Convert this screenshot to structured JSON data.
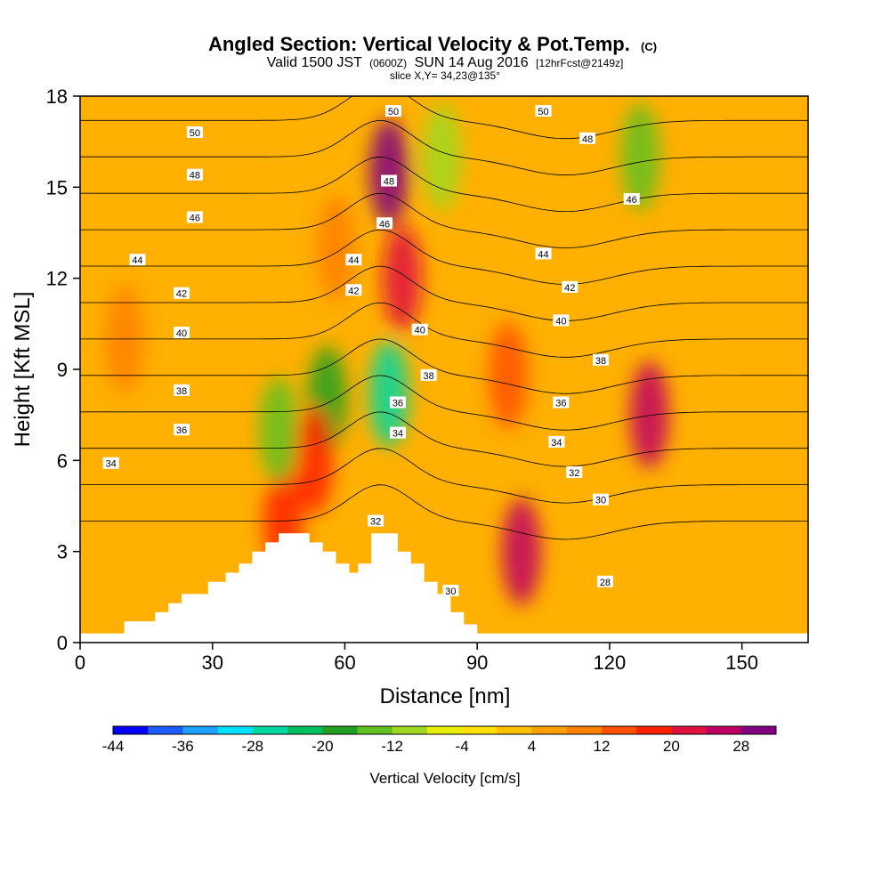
{
  "title": {
    "line1": "Angled Section: Vertical Velocity & Pot.Temp.",
    "line1_suffix": "(C)",
    "line2_a": "Valid 1500 JST",
    "line2_b": "(0600Z)",
    "line2_c": "SUN 14 Aug 2016",
    "line2_d": "[12hrFcst@2149z]",
    "line3": "slice X,Y= 34,23@135°"
  },
  "chart_data": {
    "type": "heatmap",
    "subtype": "vertical cross-section with contours",
    "xlabel": "Distance [nm]",
    "ylabel": "Height [Kft MSL]",
    "xlim": [
      0,
      165
    ],
    "ylim": [
      0,
      18
    ],
    "xticks": [
      0,
      30,
      60,
      90,
      120,
      150
    ],
    "yticks": [
      0,
      3,
      6,
      9,
      12,
      15,
      18
    ],
    "colorbar": {
      "label": "Vertical Velocity [cm/s]",
      "min": -44,
      "max": 32,
      "step": 4,
      "tick_values": [
        -44,
        -36,
        -28,
        -20,
        -12,
        -4,
        4,
        12,
        20,
        28
      ],
      "colors": [
        "#0000ff",
        "#1e5cff",
        "#1ea0ff",
        "#00e0ff",
        "#00d8a0",
        "#00c060",
        "#20a020",
        "#60c020",
        "#a0d820",
        "#e8f000",
        "#ffe000",
        "#ffc000",
        "#ffa000",
        "#ff8000",
        "#ff5000",
        "#ff2000",
        "#e01040",
        "#c00060",
        "#800080"
      ]
    },
    "terrain_kft": [
      [
        0,
        0.3
      ],
      [
        10,
        0.3
      ],
      [
        10,
        0.7
      ],
      [
        17,
        0.7
      ],
      [
        17,
        1
      ],
      [
        20,
        1
      ],
      [
        20,
        1.3
      ],
      [
        23,
        1.3
      ],
      [
        23,
        1.6
      ],
      [
        29,
        1.6
      ],
      [
        29,
        2
      ],
      [
        33,
        2
      ],
      [
        33,
        2.3
      ],
      [
        36,
        2.3
      ],
      [
        36,
        2.6
      ],
      [
        39,
        2.6
      ],
      [
        39,
        3
      ],
      [
        42,
        3
      ],
      [
        42,
        3.3
      ],
      [
        45,
        3.3
      ],
      [
        45,
        3.6
      ],
      [
        52,
        3.6
      ],
      [
        52,
        3.3
      ],
      [
        55,
        3.3
      ],
      [
        55,
        3
      ],
      [
        58,
        3
      ],
      [
        58,
        2.6
      ],
      [
        61,
        2.6
      ],
      [
        61,
        2.3
      ],
      [
        63,
        2.3
      ],
      [
        63,
        2.6
      ],
      [
        66,
        2.6
      ],
      [
        66,
        3.6
      ],
      [
        72,
        3.6
      ],
      [
        72,
        3
      ],
      [
        75,
        3
      ],
      [
        75,
        2.6
      ],
      [
        78,
        2.6
      ],
      [
        78,
        2
      ],
      [
        81,
        2
      ],
      [
        81,
        1.6
      ],
      [
        84,
        1.6
      ],
      [
        84,
        1
      ],
      [
        87,
        1
      ],
      [
        87,
        0.6
      ],
      [
        90,
        0.6
      ],
      [
        90,
        0.3
      ],
      [
        165,
        0.3
      ]
    ],
    "velocity_features": [
      {
        "x": 70,
        "y": 15.5,
        "value": 28
      },
      {
        "x": 73,
        "y": 12,
        "value": 22
      },
      {
        "x": 70,
        "y": 8.2,
        "value": -28
      },
      {
        "x": 56,
        "y": 8,
        "value": -18
      },
      {
        "x": 100,
        "y": 3,
        "value": 24
      },
      {
        "x": 129,
        "y": 7.5,
        "value": 26
      },
      {
        "x": 127,
        "y": 16,
        "value": -16
      },
      {
        "x": 82,
        "y": 16,
        "value": -10
      },
      {
        "x": 46,
        "y": 4,
        "value": 16
      },
      {
        "x": 53,
        "y": 6,
        "value": 18
      },
      {
        "x": 45,
        "y": 7,
        "value": -14
      },
      {
        "x": 97,
        "y": 8.8,
        "value": 12
      },
      {
        "x": 10,
        "y": 10,
        "value": 8
      },
      {
        "x": 58,
        "y": 13,
        "value": 10
      }
    ],
    "contours": [
      {
        "value": 28,
        "label": "28"
      },
      {
        "value": 30,
        "label": "30"
      },
      {
        "value": 32,
        "label": "32"
      },
      {
        "value": 34,
        "label": "34"
      },
      {
        "value": 36,
        "label": "36"
      },
      {
        "value": 38,
        "label": "38"
      },
      {
        "value": 40,
        "label": "40"
      },
      {
        "value": 42,
        "label": "42"
      },
      {
        "value": 44,
        "label": "44"
      },
      {
        "value": 46,
        "label": "46"
      },
      {
        "value": 48,
        "label": "48"
      },
      {
        "value": 50,
        "label": "50"
      }
    ],
    "contour_labels": [
      {
        "x": 26,
        "y": 16.8,
        "text": "50"
      },
      {
        "x": 26,
        "y": 15.4,
        "text": "48"
      },
      {
        "x": 26,
        "y": 14,
        "text": "46"
      },
      {
        "x": 13,
        "y": 12.6,
        "text": "44"
      },
      {
        "x": 23,
        "y": 11.5,
        "text": "42"
      },
      {
        "x": 23,
        "y": 10.2,
        "text": "40"
      },
      {
        "x": 23,
        "y": 8.3,
        "text": "38"
      },
      {
        "x": 23,
        "y": 7,
        "text": "36"
      },
      {
        "x": 7,
        "y": 5.9,
        "text": "34"
      },
      {
        "x": 62,
        "y": 12.6,
        "text": "44"
      },
      {
        "x": 62,
        "y": 11.6,
        "text": "42"
      },
      {
        "x": 71,
        "y": 17.5,
        "text": "50"
      },
      {
        "x": 70,
        "y": 15.2,
        "text": "48"
      },
      {
        "x": 69,
        "y": 13.8,
        "text": "46"
      },
      {
        "x": 77,
        "y": 10.3,
        "text": "40"
      },
      {
        "x": 79,
        "y": 8.8,
        "text": "38"
      },
      {
        "x": 72,
        "y": 7.9,
        "text": "36"
      },
      {
        "x": 72,
        "y": 6.9,
        "text": "34"
      },
      {
        "x": 67,
        "y": 4,
        "text": "32"
      },
      {
        "x": 84,
        "y": 1.7,
        "text": "30"
      },
      {
        "x": 105,
        "y": 17.5,
        "text": "50"
      },
      {
        "x": 115,
        "y": 16.6,
        "text": "48"
      },
      {
        "x": 125,
        "y": 14.6,
        "text": "46"
      },
      {
        "x": 105,
        "y": 12.8,
        "text": "44"
      },
      {
        "x": 111,
        "y": 11.7,
        "text": "42"
      },
      {
        "x": 109,
        "y": 10.6,
        "text": "40"
      },
      {
        "x": 118,
        "y": 9.3,
        "text": "38"
      },
      {
        "x": 109,
        "y": 7.9,
        "text": "36"
      },
      {
        "x": 108,
        "y": 6.6,
        "text": "34"
      },
      {
        "x": 112,
        "y": 5.6,
        "text": "32"
      },
      {
        "x": 118,
        "y": 4.7,
        "text": "30"
      },
      {
        "x": 119,
        "y": 2,
        "text": "28"
      }
    ]
  }
}
